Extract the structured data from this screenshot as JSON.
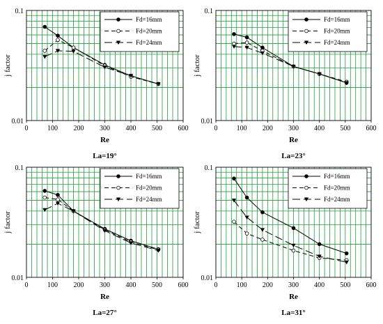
{
  "figure": {
    "colors": {
      "grid": "#1f9e3a",
      "line": "#000000",
      "background": "#ffffff"
    },
    "markers": {
      "Fd=16mm": "filled-circle",
      "Fd=20mm": "open-circle",
      "Fd=24mm": "filled-triangle-down"
    },
    "line_styles": {
      "Fd=16mm": "solid",
      "Fd=20mm": "dashed",
      "Fd=24mm": "long-dashed"
    }
  },
  "chart_data": [
    {
      "type": "line",
      "title": "La=19°",
      "xlabel": "Re",
      "ylabel": "j factor",
      "xlim": [
        0,
        600
      ],
      "ylim": [
        0.01,
        0.1
      ],
      "yscale": "log",
      "grid": true,
      "legend_position": "top-right",
      "x_ticks": [
        "0",
        "100",
        "200",
        "300",
        "400",
        "500",
        "600"
      ],
      "y_ticks": [
        "0.01",
        "0.1"
      ],
      "x": [
        70,
        120,
        180,
        300,
        400,
        505
      ],
      "series": [
        {
          "name": "Fd=16mm",
          "values": [
            0.071,
            0.059,
            0.046,
            0.032,
            0.0255,
            0.0215
          ]
        },
        {
          "name": "Fd=20mm",
          "values": [
            0.043,
            0.054,
            0.046,
            0.0315,
            0.025,
            0.0215
          ]
        },
        {
          "name": "Fd=24mm",
          "values": [
            0.038,
            0.043,
            0.0425,
            0.0305,
            0.0255,
            0.0215
          ]
        }
      ]
    },
    {
      "type": "line",
      "title": "La=23°",
      "xlabel": "Re",
      "ylabel": "j factor",
      "xlim": [
        0,
        600
      ],
      "ylim": [
        0.01,
        0.1
      ],
      "yscale": "log",
      "grid": true,
      "legend_position": "top-right",
      "x_ticks": [
        "0",
        "100",
        "200",
        "300",
        "400",
        "500",
        "600"
      ],
      "y_ticks": [
        "0.01",
        "0.1"
      ],
      "x": [
        70,
        120,
        180,
        300,
        400,
        505
      ],
      "series": [
        {
          "name": "Fd=16mm",
          "values": [
            0.061,
            0.057,
            0.046,
            0.031,
            0.0265,
            0.022
          ]
        },
        {
          "name": "Fd=20mm",
          "values": [
            0.05,
            0.051,
            0.043,
            0.031,
            0.0265,
            0.0225
          ]
        },
        {
          "name": "Fd=24mm",
          "values": [
            0.047,
            0.046,
            0.041,
            0.031,
            0.0265,
            0.022
          ]
        }
      ]
    },
    {
      "type": "line",
      "title": "La=27°",
      "xlabel": "Re",
      "ylabel": "j factor",
      "xlim": [
        0,
        600
      ],
      "ylim": [
        0.01,
        0.1
      ],
      "yscale": "log",
      "grid": true,
      "legend_position": "top-right",
      "x_ticks": [
        "0",
        "100",
        "200",
        "300",
        "400",
        "500",
        "600"
      ],
      "y_ticks": [
        "0.01",
        "0.1"
      ],
      "x": [
        70,
        120,
        180,
        300,
        400,
        505
      ],
      "series": [
        {
          "name": "Fd=16mm",
          "values": [
            0.061,
            0.056,
            0.04,
            0.0275,
            0.0215,
            0.018
          ]
        },
        {
          "name": "Fd=20mm",
          "values": [
            0.053,
            0.051,
            0.04,
            0.027,
            0.021,
            0.0178
          ]
        },
        {
          "name": "Fd=24mm",
          "values": [
            0.041,
            0.047,
            0.04,
            0.0265,
            0.0205,
            0.0175
          ]
        }
      ]
    },
    {
      "type": "line",
      "title": "La=31°",
      "xlabel": "Re",
      "ylabel": "j factor",
      "xlim": [
        0,
        600
      ],
      "ylim": [
        0.01,
        0.1
      ],
      "yscale": "log",
      "grid": true,
      "legend_position": "top-right",
      "x_ticks": [
        "0",
        "100",
        "200",
        "300",
        "400",
        "500",
        "600"
      ],
      "y_ticks": [
        "0.01",
        "0.1"
      ],
      "x": [
        70,
        120,
        180,
        300,
        400,
        505
      ],
      "series": [
        {
          "name": "Fd=16mm",
          "values": [
            0.079,
            0.053,
            0.039,
            0.028,
            0.02,
            0.0165
          ]
        },
        {
          "name": "Fd=20mm",
          "values": [
            0.032,
            0.025,
            0.022,
            0.0175,
            0.015,
            0.0143
          ]
        },
        {
          "name": "Fd=24mm",
          "values": [
            0.05,
            0.035,
            0.027,
            0.0195,
            0.0155,
            0.0137
          ]
        }
      ]
    }
  ]
}
